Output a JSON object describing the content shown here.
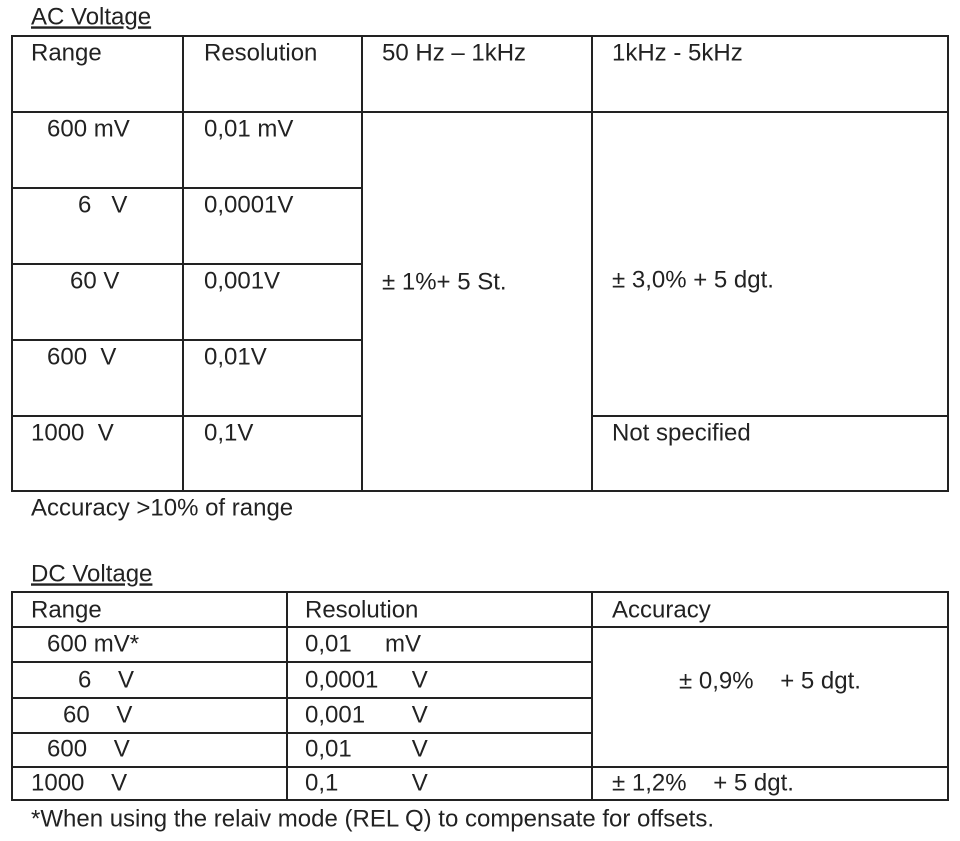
{
  "ac": {
    "title": "AC Voltage",
    "table": {
      "header": [
        "Range",
        "Resolution",
        "50 Hz – 1kHz",
        "1kHz - 5kHz"
      ],
      "rows": [
        [
          "600 mV",
          "0,01 mV"
        ],
        [
          "6   V",
          "0,0001V"
        ],
        [
          "60 V",
          "0,001V"
        ],
        [
          "600  V",
          "0,01V"
        ],
        [
          "1000  V",
          "0,1V"
        ]
      ],
      "accuracy_50hz_1khz": "± 1%+ 5 St.",
      "accuracy_1khz_5khz": "± 3,0% + 5 dgt.",
      "accuracy_1khz_5khz_1000v": "Not specified"
    },
    "note": "Accuracy >10% of range"
  },
  "dc": {
    "title": "DC Voltage",
    "table": {
      "header": [
        "Range",
        "Resolution",
        "Accuracy"
      ],
      "rows": [
        [
          "600 mV*",
          "0,01     mV"
        ],
        [
          "6    V",
          "0,0001     V"
        ],
        [
          "60    V",
          "0,001       V"
        ],
        [
          "600    V",
          "0,01         V"
        ],
        [
          "1000    V",
          "0,1           V"
        ]
      ],
      "accuracy_low": "± 0,9%    + 5 dgt.",
      "accuracy_1000v": "± 1,2%    + 5 dgt."
    },
    "footnote": "*When using the relaiv mode (REL Q) to compensate for offsets."
  }
}
